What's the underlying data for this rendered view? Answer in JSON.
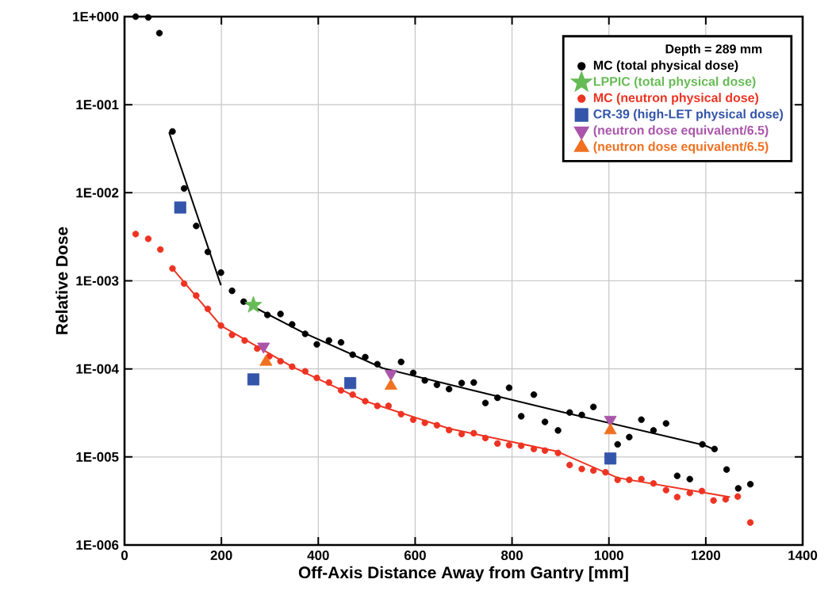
{
  "chart_data": {
    "type": "scatter",
    "xlabel": "Off-Axis Distance Away from Gantry [mm]",
    "ylabel": "Relative Dose",
    "legend_title": "Depth = 289 mm",
    "log": "y",
    "grid": true,
    "legend": "top right",
    "xlim": [
      0,
      1400
    ],
    "xticks": [
      0,
      200,
      400,
      600,
      800,
      1000,
      1200,
      1400
    ],
    "ylim": [
      1e-06,
      1
    ],
    "yticks": [
      {
        "value": 1e-06,
        "label": "1E-006"
      },
      {
        "value": 1e-05,
        "label": "1E-005"
      },
      {
        "value": 0.0001,
        "label": "1E-004"
      },
      {
        "value": 0.001,
        "label": "1E-003"
      },
      {
        "value": 0.01,
        "label": "1E-002"
      },
      {
        "value": 0.1,
        "label": "1E-001"
      },
      {
        "value": 1,
        "label": "1E+000"
      }
    ],
    "series": [
      {
        "type": "line",
        "color": "#000000",
        "marker": "none",
        "x": [
          92,
          199
        ],
        "values": [
          0.0486,
          0.00089
        ]
      },
      {
        "type": "line",
        "color": "#000000",
        "marker": "none",
        "x": [
          251,
          369,
          533,
          714,
          901,
          1197,
          1223
        ],
        "values": [
          0.00056,
          0.000258,
          0.000102,
          5.8e-05,
          3.26e-05,
          1.36e-05,
          1.18e-05
        ]
      },
      {
        "type": "line",
        "color": "#ee3322",
        "marker": "none",
        "x": [
          99,
          199,
          346,
          497,
          670,
          894,
          1018,
          1200,
          1250
        ],
        "values": [
          0.00138,
          0.00031,
          0.000106,
          4.3e-05,
          2.1e-05,
          1.15e-05,
          5.8e-06,
          3.9e-06,
          3.5e-06
        ]
      },
      {
        "name": "MC (total physical dose)",
        "color": "#000000",
        "marker": "circle",
        "x": [
          23,
          49,
          72,
          99,
          123,
          148,
          172,
          199,
          222,
          246,
          295,
          322,
          346,
          373,
          397,
          422,
          447,
          471,
          497,
          522,
          571,
          596,
          620,
          645,
          670,
          696,
          721,
          745,
          770,
          794,
          819,
          845,
          868,
          895,
          919,
          944,
          968,
          1018,
          1042,
          1067,
          1092,
          1118,
          1141,
          1167,
          1193,
          1218,
          1243,
          1267,
          1292
        ],
        "values": [
          1.0,
          0.98,
          0.65,
          0.0497,
          0.0112,
          0.0042,
          0.00213,
          0.00124,
          0.00077,
          0.00058,
          0.00041,
          0.00042,
          0.00032,
          0.00025,
          0.00019,
          0.00021,
          0.0002,
          0.000145,
          0.000136,
          0.000113,
          0.00012,
          9e-05,
          7.4e-05,
          6.6e-05,
          5.9e-05,
          6.9e-05,
          7e-05,
          4.1e-05,
          4.7e-05,
          6.1e-05,
          2.9e-05,
          5.1e-05,
          2.5e-05,
          2e-05,
          3.2e-05,
          3e-05,
          3.7e-05,
          1.39e-05,
          1.68e-05,
          2.65e-05,
          2e-05,
          2.4e-05,
          6.1e-06,
          5.6e-06,
          1.39e-05,
          1.23e-05,
          7.2e-06,
          4.4e-06,
          4.9e-06
        ]
      },
      {
        "name": "LPPIC (total physical dose)",
        "color": "#66bb55",
        "marker": "star",
        "x": [
          266
        ],
        "values": [
          0.00053
        ]
      },
      {
        "name": "MC (neutron physical dose)",
        "color": "#ee3322",
        "marker": "circle",
        "x": [
          23,
          49,
          74,
          99,
          123,
          148,
          172,
          199,
          222,
          248,
          274,
          299,
          322,
          346,
          373,
          397,
          422,
          447,
          471,
          497,
          522,
          545,
          571,
          596,
          620,
          645,
          670,
          696,
          721,
          745,
          770,
          794,
          819,
          845,
          868,
          895,
          919,
          944,
          968,
          993,
          1018,
          1042,
          1067,
          1092,
          1118,
          1141,
          1167,
          1192,
          1216,
          1241,
          1266,
          1292
        ],
        "values": [
          0.0034,
          0.003,
          0.00227,
          0.00138,
          0.00093,
          0.00068,
          0.00048,
          0.00031,
          0.000243,
          0.00021,
          0.00017,
          0.000139,
          0.000122,
          0.000106,
          9.4e-05,
          7.9e-05,
          7e-05,
          5.7e-05,
          5.1e-05,
          4.3e-05,
          3.8e-05,
          3.8e-05,
          3.06e-05,
          2.65e-05,
          2.44e-05,
          2.29e-05,
          2.02e-05,
          1.82e-05,
          1.86e-05,
          1.64e-05,
          1.42e-05,
          1.36e-05,
          1.34e-05,
          1.23e-05,
          1.18e-05,
          1.11e-05,
          8.1e-06,
          7.3e-06,
          7e-06,
          6.7e-06,
          5.5e-06,
          5.5e-06,
          5.6e-06,
          5e-06,
          4.2e-06,
          3.5e-06,
          3.9e-06,
          4.1e-06,
          3.2e-06,
          3.3e-06,
          3.55e-06,
          1.8e-06
        ]
      },
      {
        "name": "CR-39 (high-LET physical dose)",
        "color": "#3355aa",
        "marker": "square",
        "x": [
          115,
          266,
          466,
          1003
        ],
        "values": [
          0.0068,
          7.6e-05,
          6.9e-05,
          9.6e-06
        ]
      },
      {
        "name": "(neutron dose equivalent/6.5)",
        "color": "#aa55aa",
        "marker": "triangle-down",
        "x": [
          287,
          550,
          1003
        ],
        "values": [
          0.00018,
          8.8e-05,
          2.65e-05
        ]
      },
      {
        "name": "(neutron dose equivalent/6.5)",
        "color": "#f07020",
        "marker": "triangle",
        "x": [
          292,
          550,
          1003
        ],
        "values": [
          0.00012,
          6.4e-05,
          2e-05
        ]
      }
    ]
  }
}
